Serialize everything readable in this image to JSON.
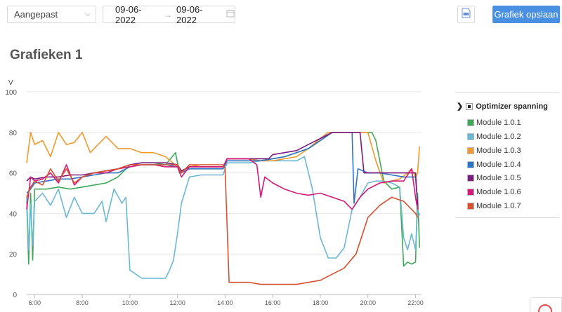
{
  "toolbar": {
    "range_value": "Aangepast",
    "date_from": "09-06-2022",
    "date_to": "09-06-2022",
    "save_label": "Grafiek opslaan"
  },
  "page_title": "Grafieken 1",
  "legend": {
    "group": "Optimizer spanning",
    "items": [
      {
        "label": "Module 1.0.1",
        "color": "#3fa858"
      },
      {
        "label": "Module 1.0.2",
        "color": "#6cb8d4"
      },
      {
        "label": "Module 1.0.3",
        "color": "#ef9930"
      },
      {
        "label": "Module 1.0.4",
        "color": "#2f73c4"
      },
      {
        "label": "Module 1.0.5",
        "color": "#7d1b7e"
      },
      {
        "label": "Module 1.0.6",
        "color": "#d21a7a"
      },
      {
        "label": "Module 1.0.7",
        "color": "#d8512f"
      }
    ]
  },
  "chart_data": {
    "type": "line",
    "ylabel": "V",
    "ylim": [
      0,
      100
    ],
    "yticks": [
      "0",
      "20",
      "40",
      "60",
      "80",
      "100"
    ],
    "xlim": [
      "05:40",
      "22:15"
    ],
    "xticks": [
      "6:00",
      "8:00",
      "10:00",
      "12:00",
      "14:00",
      "16:00",
      "18:00",
      "20:00",
      "22:00"
    ],
    "grid": true,
    "series": [
      {
        "name": "Module 1.0.1",
        "color": "#3fa858",
        "x": [
          "05:40",
          "05:45",
          "05:50",
          "05:55",
          "06:00",
          "06:30",
          "07:00",
          "07:30",
          "08:00",
          "08:30",
          "09:00",
          "09:30",
          "10:00",
          "10:30",
          "11:00",
          "11:30",
          "11:55",
          "12:05",
          "12:30",
          "13:00",
          "13:30",
          "13:55",
          "14:05",
          "14:30",
          "15:00",
          "15:30",
          "16:00",
          "16:30",
          "17:00",
          "17:30",
          "18:00",
          "18:30",
          "19:00",
          "19:30",
          "20:00",
          "20:10",
          "20:20",
          "20:40",
          "21:00",
          "21:20",
          "21:30",
          "21:40",
          "21:50",
          "22:00",
          "22:05",
          "22:10"
        ],
        "y": [
          46,
          15,
          50,
          17,
          52,
          52,
          53,
          52,
          53,
          54,
          55,
          58,
          64,
          65,
          65,
          64,
          70,
          60,
          63,
          63,
          63,
          63,
          66,
          66,
          66,
          66,
          67,
          68,
          70,
          72,
          76,
          80,
          80,
          80,
          80,
          80,
          76,
          56,
          52,
          53,
          14,
          16,
          15,
          16,
          50,
          23
        ]
      },
      {
        "name": "Module 1.0.2",
        "color": "#6cb8d4",
        "x": [
          "05:40",
          "05:45",
          "05:50",
          "05:55",
          "06:00",
          "06:20",
          "06:40",
          "07:00",
          "07:20",
          "07:40",
          "08:00",
          "08:30",
          "08:50",
          "09:00",
          "09:20",
          "09:40",
          "09:50",
          "10:00",
          "10:30",
          "11:00",
          "11:30",
          "11:40",
          "11:50",
          "12:00",
          "12:10",
          "12:30",
          "13:00",
          "13:30",
          "13:55",
          "14:05",
          "14:30",
          "15:00",
          "15:30",
          "16:00",
          "16:30",
          "17:00",
          "17:20",
          "17:40",
          "18:00",
          "18:20",
          "18:40",
          "19:00",
          "19:20",
          "19:40",
          "20:00",
          "20:20",
          "20:40",
          "21:00",
          "21:20",
          "21:30",
          "21:40",
          "21:50",
          "22:00",
          "22:05",
          "22:10"
        ],
        "y": [
          48,
          22,
          45,
          24,
          46,
          50,
          44,
          52,
          38,
          48,
          40,
          40,
          46,
          36,
          52,
          45,
          48,
          12,
          8,
          8,
          8,
          12,
          17,
          30,
          45,
          58,
          59,
          59,
          59,
          65,
          65,
          65,
          66,
          66,
          66,
          66,
          68,
          52,
          28,
          18,
          18,
          23,
          42,
          48,
          55,
          56,
          56,
          55,
          53,
          28,
          22,
          30,
          22,
          42,
          39
        ]
      },
      {
        "name": "Module 1.0.3",
        "color": "#ef9930",
        "x": [
          "05:40",
          "05:50",
          "06:00",
          "06:20",
          "06:40",
          "07:00",
          "07:20",
          "07:40",
          "08:00",
          "08:20",
          "08:40",
          "09:00",
          "09:30",
          "10:00",
          "10:30",
          "11:00",
          "11:30",
          "12:00",
          "12:10",
          "12:30",
          "13:00",
          "13:30",
          "13:55",
          "14:05",
          "14:30",
          "15:00",
          "15:30",
          "16:00",
          "16:30",
          "17:00",
          "17:30",
          "18:00",
          "18:20",
          "18:30",
          "19:00",
          "19:30",
          "20:00",
          "20:20",
          "20:40",
          "21:00",
          "21:20",
          "21:40",
          "21:50",
          "22:00",
          "22:05",
          "22:10"
        ],
        "y": [
          65,
          80,
          74,
          76,
          68,
          80,
          74,
          75,
          80,
          70,
          74,
          78,
          72,
          72,
          70,
          70,
          68,
          63,
          60,
          64,
          63,
          63,
          63,
          67,
          67,
          67,
          66,
          66,
          67,
          68,
          72,
          77,
          80,
          80,
          80,
          80,
          80,
          66,
          55,
          56,
          57,
          60,
          62,
          58,
          60,
          73
        ]
      },
      {
        "name": "Module 1.0.4",
        "color": "#2f73c4",
        "x": [
          "05:40",
          "05:50",
          "06:00",
          "06:30",
          "07:00",
          "07:30",
          "08:00",
          "08:30",
          "09:00",
          "09:30",
          "10:00",
          "10:30",
          "11:00",
          "11:30",
          "12:00",
          "12:10",
          "12:30",
          "13:00",
          "13:30",
          "13:55",
          "14:05",
          "14:30",
          "15:00",
          "15:30",
          "16:00",
          "16:30",
          "17:00",
          "17:30",
          "18:00",
          "18:30",
          "19:00",
          "19:20",
          "19:25",
          "19:35",
          "20:00",
          "20:30",
          "21:00",
          "21:30",
          "22:00",
          "22:05"
        ],
        "y": [
          50,
          52,
          55,
          56,
          57,
          57,
          58,
          59,
          60,
          60,
          63,
          64,
          64,
          64,
          63,
          60,
          62,
          62,
          62,
          62,
          66,
          66,
          66,
          66,
          67,
          68,
          70,
          72,
          76,
          80,
          80,
          80,
          45,
          62,
          60,
          60,
          59,
          58,
          58,
          45
        ]
      },
      {
        "name": "Module 1.0.5",
        "color": "#7d1b7e",
        "x": [
          "05:40",
          "05:50",
          "06:00",
          "06:30",
          "07:00",
          "07:30",
          "08:00",
          "08:30",
          "09:00",
          "09:30",
          "10:00",
          "10:30",
          "11:00",
          "11:30",
          "12:00",
          "12:10",
          "12:30",
          "13:00",
          "13:30",
          "13:55",
          "14:05",
          "14:30",
          "15:00",
          "15:30",
          "15:50",
          "16:00",
          "16:30",
          "17:00",
          "17:30",
          "18:00",
          "18:30",
          "19:00",
          "19:30",
          "19:40",
          "19:50",
          "20:00",
          "20:30",
          "21:00",
          "21:30",
          "22:00",
          "22:05"
        ],
        "y": [
          56,
          58,
          57,
          58,
          58,
          59,
          59,
          60,
          61,
          62,
          64,
          65,
          65,
          65,
          64,
          61,
          63,
          63,
          63,
          63,
          67,
          67,
          67,
          67,
          67,
          69,
          70,
          71,
          74,
          77,
          80,
          80,
          80,
          80,
          60,
          60,
          60,
          60,
          60,
          60,
          44
        ]
      },
      {
        "name": "Module 1.0.6",
        "color": "#d21a7a",
        "x": [
          "05:40",
          "05:50",
          "06:00",
          "06:20",
          "06:40",
          "07:00",
          "07:20",
          "07:40",
          "08:00",
          "08:30",
          "09:00",
          "09:30",
          "10:00",
          "10:30",
          "11:00",
          "11:30",
          "12:00",
          "12:10",
          "12:30",
          "13:00",
          "13:30",
          "13:55",
          "14:05",
          "14:30",
          "15:00",
          "15:20",
          "15:30",
          "15:40",
          "16:00",
          "16:30",
          "17:00",
          "17:30",
          "18:00",
          "18:30",
          "19:00",
          "19:20",
          "19:40",
          "20:00",
          "20:30",
          "21:00",
          "21:30",
          "21:50",
          "22:00",
          "22:05"
        ],
        "y": [
          42,
          58,
          56,
          57,
          60,
          55,
          64,
          54,
          58,
          60,
          60,
          62,
          63,
          64,
          64,
          63,
          63,
          58,
          63,
          63,
          63,
          63,
          67,
          67,
          67,
          64,
          48,
          58,
          55,
          52,
          50,
          49,
          50,
          48,
          46,
          42,
          48,
          52,
          55,
          56,
          56,
          62,
          48,
          42
        ]
      },
      {
        "name": "Module 1.0.7",
        "color": "#d8512f",
        "x": [
          "05:40",
          "05:50",
          "06:00",
          "06:20",
          "06:40",
          "07:00",
          "07:20",
          "07:40",
          "08:00",
          "08:30",
          "09:00",
          "09:30",
          "10:00",
          "10:30",
          "11:00",
          "11:30",
          "12:00",
          "12:10",
          "12:30",
          "13:00",
          "13:30",
          "13:55",
          "14:00",
          "14:10",
          "14:30",
          "15:00",
          "15:30",
          "16:00",
          "16:30",
          "17:00",
          "17:30",
          "18:00",
          "18:30",
          "19:00",
          "19:30",
          "19:50",
          "20:00",
          "20:30",
          "21:00",
          "21:30",
          "21:50",
          "22:00",
          "22:05"
        ],
        "y": [
          48,
          53,
          56,
          54,
          62,
          56,
          62,
          55,
          58,
          60,
          61,
          62,
          64,
          64,
          64,
          64,
          64,
          60,
          64,
          64,
          64,
          64,
          62,
          6,
          6,
          6,
          5,
          5,
          5,
          5,
          6,
          7,
          10,
          13,
          20,
          32,
          38,
          44,
          48,
          46,
          42,
          40,
          38
        ]
      }
    ]
  }
}
